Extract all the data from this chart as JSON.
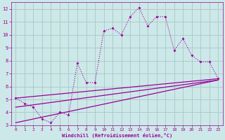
{
  "background_color": "#cde8e8",
  "grid_color": "#aacccc",
  "line_color": "#990099",
  "xlabel": "Windchill (Refroidissement éolien,°C)",
  "xlim": [
    -0.5,
    23.5
  ],
  "ylim": [
    3,
    12.5
  ],
  "xticks": [
    0,
    1,
    2,
    3,
    4,
    5,
    6,
    7,
    8,
    9,
    10,
    11,
    12,
    13,
    14,
    15,
    16,
    17,
    18,
    19,
    20,
    21,
    22,
    23
  ],
  "yticks": [
    3,
    4,
    5,
    6,
    7,
    8,
    9,
    10,
    11,
    12
  ],
  "main_x": [
    0,
    1,
    2,
    3,
    4,
    5,
    6,
    7,
    8,
    9,
    10,
    11,
    12,
    13,
    14,
    15,
    16,
    17,
    18,
    19,
    20,
    21,
    22,
    23
  ],
  "main_y": [
    5.1,
    4.7,
    4.4,
    3.5,
    3.2,
    4.0,
    3.8,
    7.8,
    6.3,
    6.3,
    10.3,
    10.5,
    10.0,
    11.4,
    12.1,
    10.7,
    11.4,
    11.4,
    8.8,
    9.7,
    8.4,
    7.9,
    7.9,
    6.6
  ],
  "line_top_start": 5.1,
  "line_top_end": 6.6,
  "line_mid_start": 4.4,
  "line_mid_end": 6.5,
  "line_bot_start": 3.2,
  "line_bot_end": 6.5,
  "xend": 23
}
